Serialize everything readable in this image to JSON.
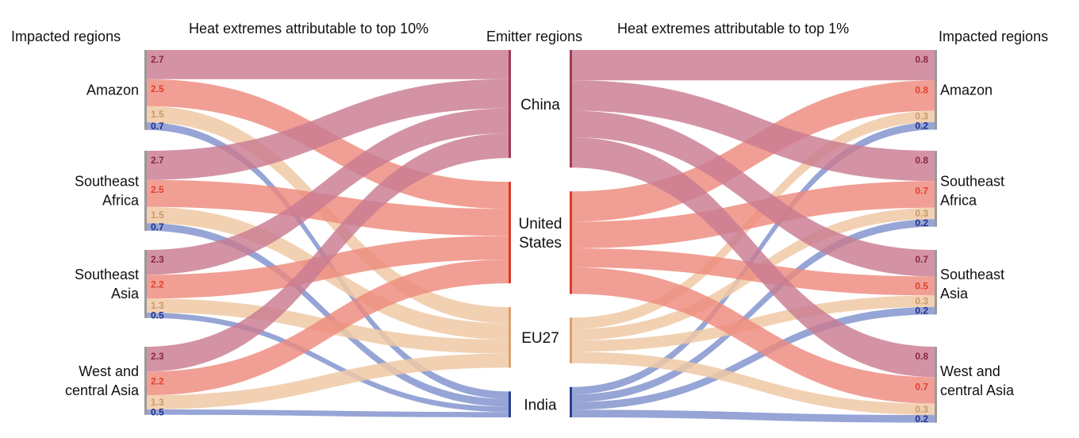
{
  "headers": {
    "impacted_left": "Impacted regions",
    "title_left": "Heat extremes attributable to top 10%",
    "emitter": "Emitter regions",
    "title_right": "Heat extremes attributable to top 1%",
    "impacted_right": "Impacted regions"
  },
  "emitters": [
    {
      "name": "China",
      "lines": [
        "China"
      ],
      "color": "#a33a55"
    },
    {
      "name": "United States",
      "lines": [
        "United",
        "States"
      ],
      "color": "#d9392b"
    },
    {
      "name": "EU27",
      "lines": [
        "EU27"
      ],
      "color": "#d9a070"
    },
    {
      "name": "India",
      "lines": [
        "India"
      ],
      "color": "#2a3e8f"
    }
  ],
  "colors": {
    "China": "#c97b91",
    "United States": "#ee8a7c",
    "EU27": "#f0c9a6",
    "India": "#7f91cc",
    "China_text": "#8a2a40",
    "United States_text": "#e0412f",
    "EU27_text": "#c89a6a",
    "India_text": "#23318a",
    "bar": "#999999"
  },
  "regions": [
    {
      "name": "Amazon",
      "lines": [
        "Amazon"
      ],
      "top10": [
        2.7,
        2.5,
        1.5,
        0.7
      ],
      "top1": [
        0.8,
        0.8,
        0.3,
        0.2
      ],
      "top10_labels": [
        "2.7",
        "2.5",
        "1.5",
        "0.7"
      ],
      "top1_labels": [
        "0.8",
        "0.8",
        "0.3",
        "0.2"
      ]
    },
    {
      "name": "Southeast Africa",
      "lines": [
        "Southeast",
        "Africa"
      ],
      "top10": [
        2.7,
        2.5,
        1.5,
        0.7
      ],
      "top1": [
        0.8,
        0.7,
        0.3,
        0.2
      ],
      "top10_labels": [
        "2.7",
        "2.5",
        "1.5",
        "0.7"
      ],
      "top1_labels": [
        "0.8",
        "0.7",
        "0.3",
        "0.2"
      ]
    },
    {
      "name": "Southeast Asia",
      "lines": [
        "Southeast",
        "Asia"
      ],
      "top10": [
        2.3,
        2.2,
        1.3,
        0.5
      ],
      "top1": [
        0.7,
        0.5,
        0.3,
        0.2
      ],
      "top10_labels": [
        "2.3",
        "2.2",
        "1.3",
        "0.5"
      ],
      "top1_labels": [
        "0.7",
        "0.5",
        "0.3",
        "0.2"
      ]
    },
    {
      "name": "West and central Asia",
      "lines": [
        "West and",
        "central Asia"
      ],
      "top10": [
        2.3,
        2.2,
        1.3,
        0.5
      ],
      "top1": [
        0.8,
        0.7,
        0.3,
        0.2
      ],
      "top10_labels": [
        "2.3",
        "2.2",
        "1.3",
        "0.5"
      ],
      "top1_labels": [
        "0.8",
        "0.7",
        "0.3",
        "0.2"
      ]
    }
  ]
}
